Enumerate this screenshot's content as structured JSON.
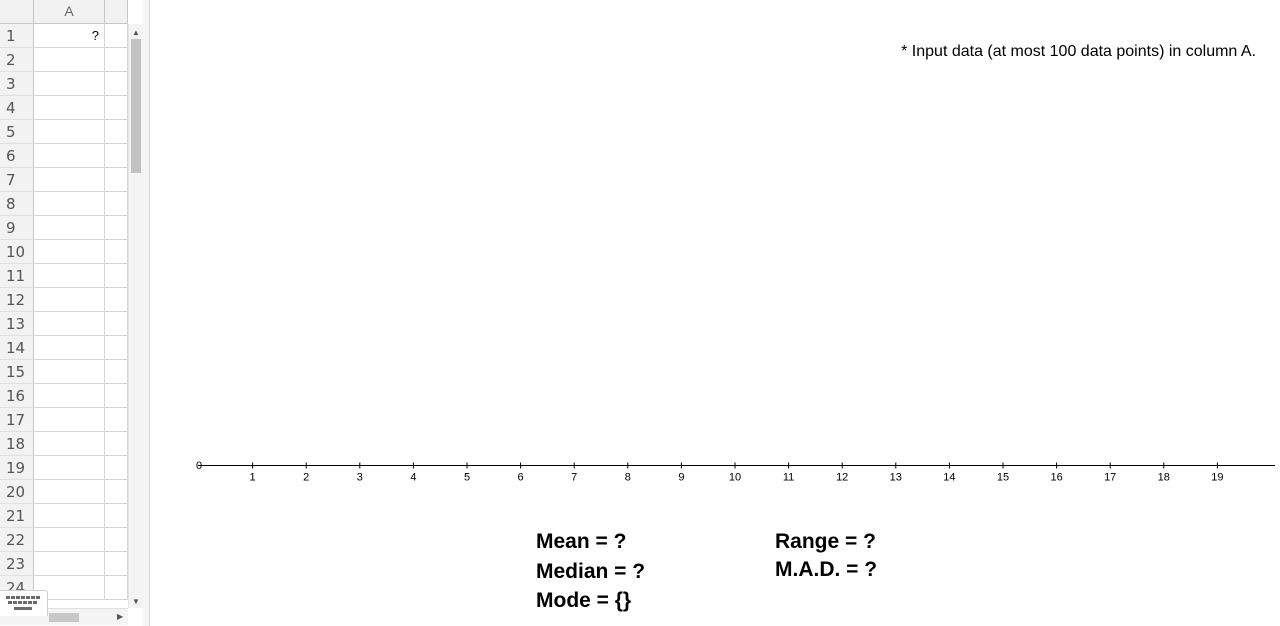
{
  "spreadsheet": {
    "column_headers": [
      "A"
    ],
    "rows": [
      {
        "num": "1",
        "a": "?"
      },
      {
        "num": "2",
        "a": ""
      },
      {
        "num": "3",
        "a": ""
      },
      {
        "num": "4",
        "a": ""
      },
      {
        "num": "5",
        "a": ""
      },
      {
        "num": "6",
        "a": ""
      },
      {
        "num": "7",
        "a": ""
      },
      {
        "num": "8",
        "a": ""
      },
      {
        "num": "9",
        "a": ""
      },
      {
        "num": "10",
        "a": ""
      },
      {
        "num": "11",
        "a": ""
      },
      {
        "num": "12",
        "a": ""
      },
      {
        "num": "13",
        "a": ""
      },
      {
        "num": "14",
        "a": ""
      },
      {
        "num": "15",
        "a": ""
      },
      {
        "num": "16",
        "a": ""
      },
      {
        "num": "17",
        "a": ""
      },
      {
        "num": "18",
        "a": ""
      },
      {
        "num": "19",
        "a": ""
      },
      {
        "num": "20",
        "a": ""
      },
      {
        "num": "21",
        "a": ""
      },
      {
        "num": "22",
        "a": ""
      },
      {
        "num": "23",
        "a": ""
      },
      {
        "num": "24",
        "a": ""
      }
    ],
    "icons": {
      "keyboard": "keyboard-icon",
      "scroll_up": "▲",
      "scroll_down": "▼",
      "scroll_right": "▶"
    }
  },
  "graphics": {
    "note": "* Input data (at most 100 data points) in column A.",
    "axis": {
      "origin_label": "0",
      "tick_labels": [
        "1",
        "2",
        "3",
        "4",
        "5",
        "6",
        "7",
        "8",
        "9",
        "10",
        "11",
        "12",
        "13",
        "14",
        "15",
        "16",
        "17",
        "18",
        "19"
      ]
    },
    "stats": {
      "mean": "Mean = ?",
      "median": "Median = ?",
      "mode": "Mode = {}",
      "range": "Range = ?",
      "mad": "M.A.D. = ?"
    }
  }
}
